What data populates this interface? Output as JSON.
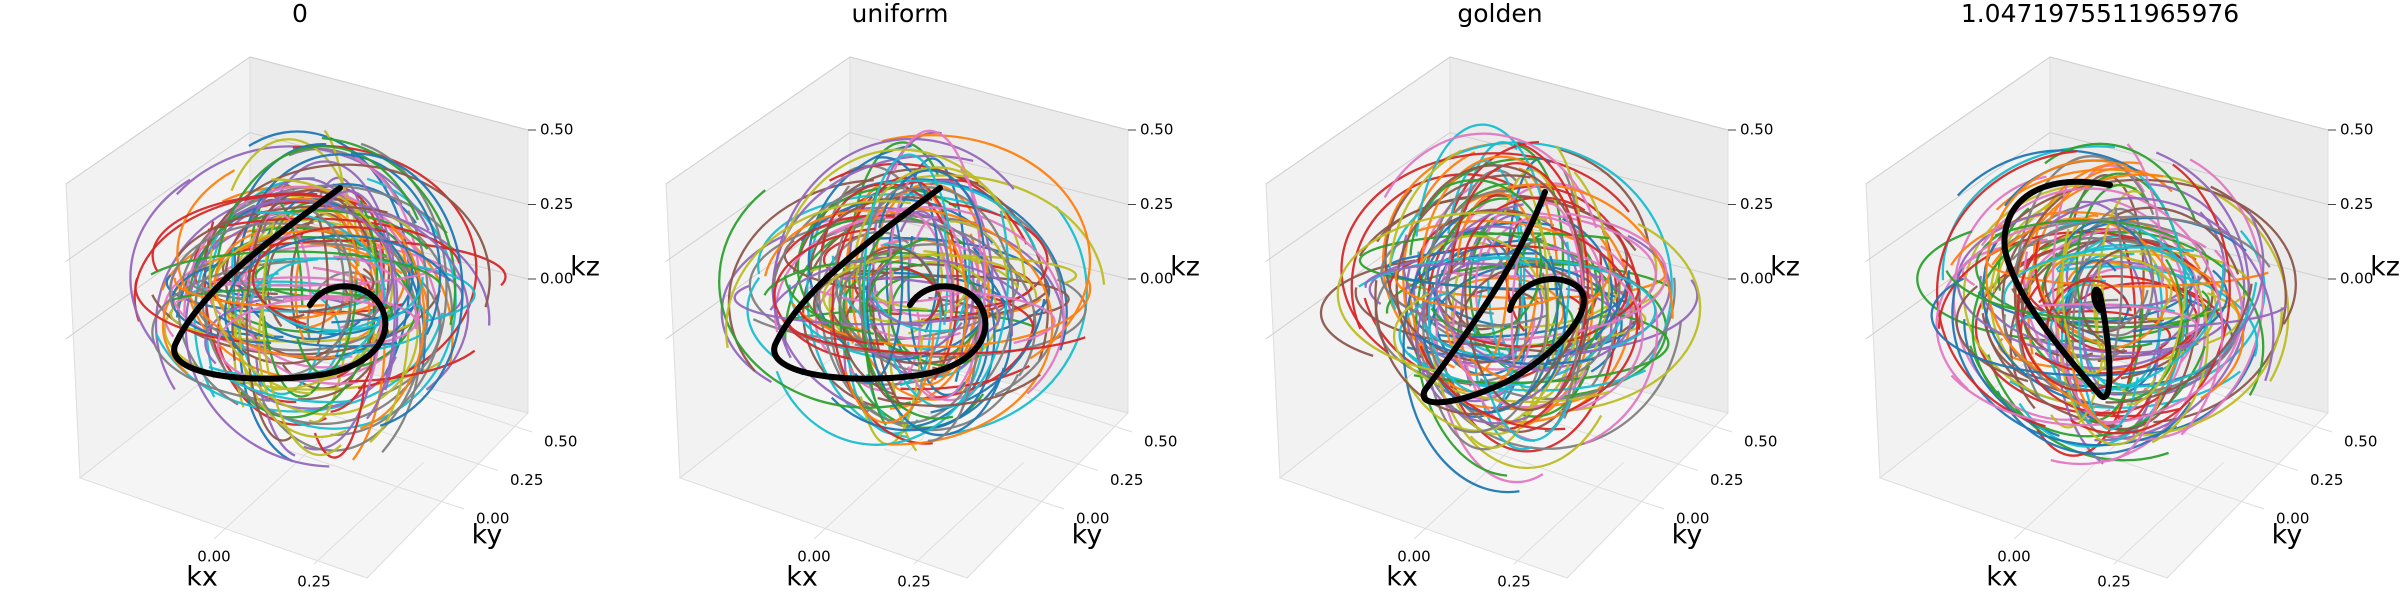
{
  "chart_data": [
    {
      "type": "line3d",
      "title": "0",
      "xlabel": "kx",
      "ylabel": "ky",
      "zlabel": "kz",
      "xticks": [
        {
          "value": 0,
          "label": "0.00"
        },
        {
          "value": 0.25,
          "label": "0.25"
        }
      ],
      "yticks": [
        {
          "value": 0,
          "label": "0.00"
        },
        {
          "value": 0.25,
          "label": "0.25"
        },
        {
          "value": 0.5,
          "label": "0.50"
        }
      ],
      "zticks": [
        {
          "value": 0,
          "label": "0.00"
        },
        {
          "value": 0.25,
          "label": "0.25"
        },
        {
          "value": 0.5,
          "label": "0.50"
        }
      ],
      "grid": true
    },
    {
      "type": "line3d",
      "title": "uniform",
      "xlabel": "kx",
      "ylabel": "ky",
      "zlabel": "kz",
      "xticks": [
        {
          "value": 0,
          "label": "0.00"
        },
        {
          "value": 0.25,
          "label": "0.25"
        }
      ],
      "yticks": [
        {
          "value": 0,
          "label": "0.00"
        },
        {
          "value": 0.25,
          "label": "0.25"
        },
        {
          "value": 0.5,
          "label": "0.50"
        }
      ],
      "zticks": [
        {
          "value": 0,
          "label": "0.00"
        },
        {
          "value": 0.25,
          "label": "0.25"
        },
        {
          "value": 0.5,
          "label": "0.50"
        }
      ],
      "grid": true
    },
    {
      "type": "line3d",
      "title": "golden",
      "xlabel": "kx",
      "ylabel": "ky",
      "zlabel": "kz",
      "xticks": [
        {
          "value": 0,
          "label": "0.00"
        },
        {
          "value": 0.25,
          "label": "0.25"
        }
      ],
      "yticks": [
        {
          "value": 0,
          "label": "0.00"
        },
        {
          "value": 0.25,
          "label": "0.25"
        },
        {
          "value": 0.5,
          "label": "0.50"
        }
      ],
      "zticks": [
        {
          "value": 0,
          "label": "0.00"
        },
        {
          "value": 0.25,
          "label": "0.25"
        },
        {
          "value": 0.5,
          "label": "0.50"
        }
      ],
      "grid": true
    },
    {
      "type": "line3d",
      "title": "1.0471975511965976",
      "xlabel": "kx",
      "ylabel": "ky",
      "zlabel": "kz",
      "xticks": [
        {
          "value": 0,
          "label": "0.00"
        },
        {
          "value": 0.25,
          "label": "0.25"
        }
      ],
      "yticks": [
        {
          "value": 0,
          "label": "0.00"
        },
        {
          "value": 0.25,
          "label": "0.25"
        },
        {
          "value": 0.5,
          "label": "0.50"
        }
      ],
      "zticks": [
        {
          "value": 0,
          "label": "0.00"
        },
        {
          "value": 0.25,
          "label": "0.25"
        },
        {
          "value": 0.5,
          "label": "0.50"
        }
      ],
      "grid": true
    }
  ]
}
